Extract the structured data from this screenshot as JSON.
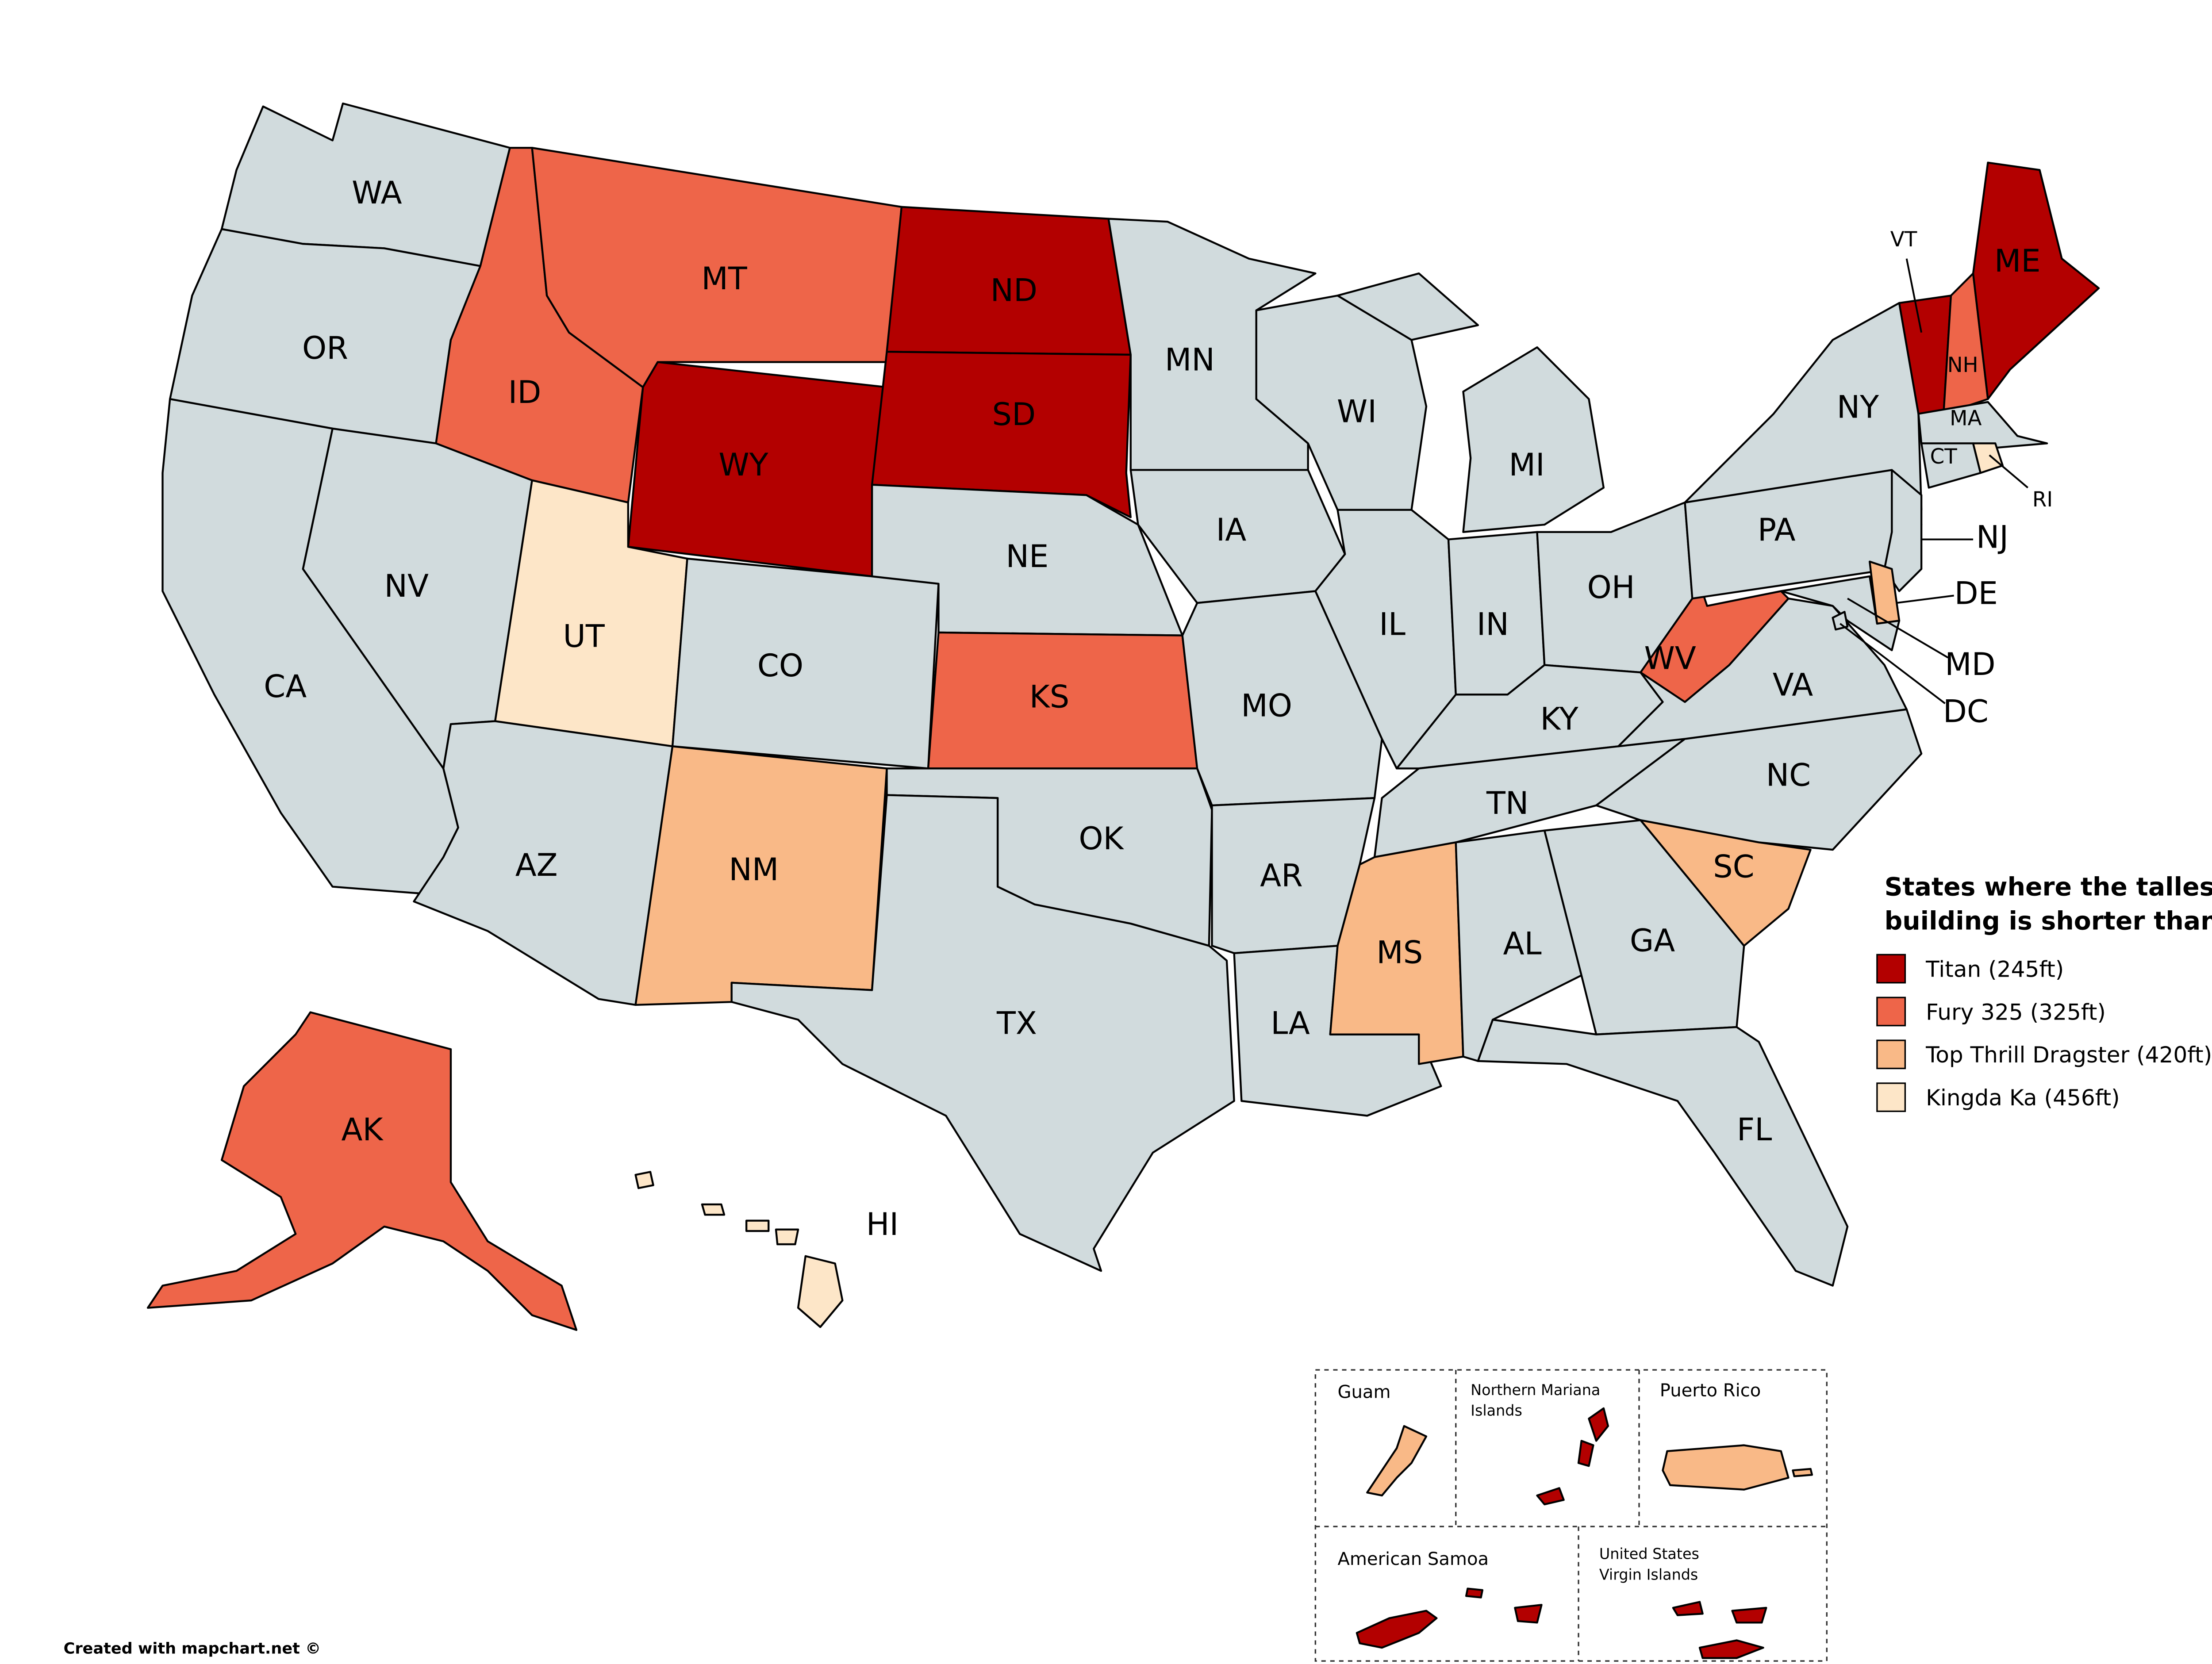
{
  "map": {
    "default_color": "#d1dbdd",
    "states": [
      {
        "label": "WA",
        "category": null
      },
      {
        "label": "OR",
        "category": null
      },
      {
        "label": "CA",
        "category": null
      },
      {
        "label": "NV",
        "category": null
      },
      {
        "label": "ID",
        "category": 1
      },
      {
        "label": "MT",
        "category": 1
      },
      {
        "label": "WY",
        "category": 0
      },
      {
        "label": "UT",
        "category": 3
      },
      {
        "label": "AZ",
        "category": null
      },
      {
        "label": "CO",
        "category": null
      },
      {
        "label": "NM",
        "category": 2
      },
      {
        "label": "ND",
        "category": 0
      },
      {
        "label": "SD",
        "category": 0
      },
      {
        "label": "NE",
        "category": null
      },
      {
        "label": "KS",
        "category": 1
      },
      {
        "label": "OK",
        "category": null
      },
      {
        "label": "TX",
        "category": null
      },
      {
        "label": "MN",
        "category": null
      },
      {
        "label": "IA",
        "category": null
      },
      {
        "label": "MO",
        "category": null
      },
      {
        "label": "AR",
        "category": null
      },
      {
        "label": "LA",
        "category": null
      },
      {
        "label": "WI",
        "category": null
      },
      {
        "label": "IL",
        "category": null
      },
      {
        "label": "MI",
        "category": null
      },
      {
        "label": "IN",
        "category": null
      },
      {
        "label": "OH",
        "category": null
      },
      {
        "label": "KY",
        "category": null
      },
      {
        "label": "TN",
        "category": null
      },
      {
        "label": "MS",
        "category": 2
      },
      {
        "label": "AL",
        "category": null
      },
      {
        "label": "GA",
        "category": null
      },
      {
        "label": "FL",
        "category": null
      },
      {
        "label": "SC",
        "category": 2
      },
      {
        "label": "NC",
        "category": null
      },
      {
        "label": "VA",
        "category": null
      },
      {
        "label": "WV",
        "category": 1
      },
      {
        "label": "PA",
        "category": null
      },
      {
        "label": "NY",
        "category": null
      },
      {
        "label": "NJ",
        "category": null
      },
      {
        "label": "DE",
        "category": 2
      },
      {
        "label": "MD",
        "category": null
      },
      {
        "label": "DC",
        "category": null
      },
      {
        "label": "VT",
        "category": 0
      },
      {
        "label": "NH",
        "category": 1
      },
      {
        "label": "ME",
        "category": 0
      },
      {
        "label": "MA",
        "category": null
      },
      {
        "label": "CT",
        "category": null
      },
      {
        "label": "RI",
        "category": 3
      },
      {
        "label": "AK",
        "category": 1
      },
      {
        "label": "HI",
        "category": 3
      }
    ]
  },
  "legend": {
    "title_lines": [
      "States where the tallest",
      "building is shorter than:"
    ],
    "items": [
      {
        "label": "Titan (245ft)",
        "color": "#b30000"
      },
      {
        "label": "Fury 325 (325ft)",
        "color": "#ee6549"
      },
      {
        "label": "Top Thrill Dragster (420ft)",
        "color": "#f9b987"
      },
      {
        "label": "Kingda Ka (456ft)",
        "color": "#fde6c8"
      }
    ]
  },
  "insets": [
    {
      "label_lines": [
        "Guam"
      ],
      "category": 2
    },
    {
      "label_lines": [
        "Northern Mariana",
        "Islands"
      ],
      "category": 0
    },
    {
      "label_lines": [
        "Puerto Rico"
      ],
      "category": 2
    },
    {
      "label_lines": [
        "American Samoa"
      ],
      "category": 0
    },
    {
      "label_lines": [
        "United States",
        "Virgin Islands"
      ],
      "category": 0
    }
  ],
  "footer": "Created with mapchart.net ©"
}
